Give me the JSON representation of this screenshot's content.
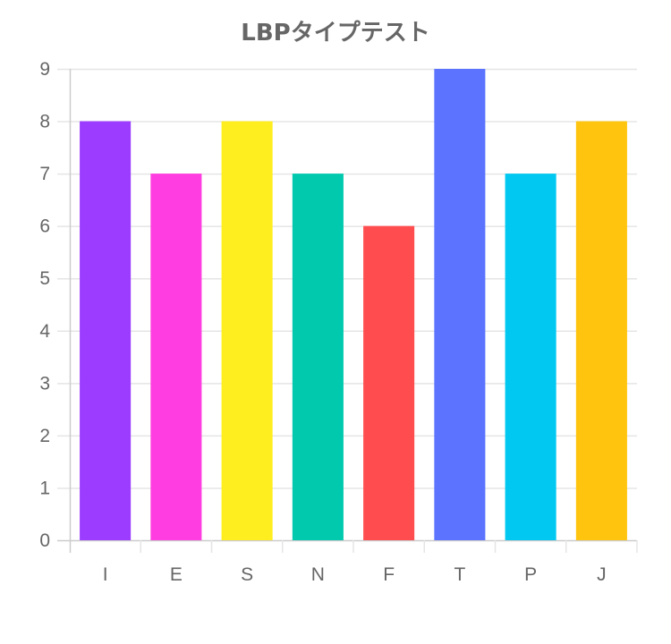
{
  "chart_data": {
    "type": "bar",
    "title": "LBPタイプテスト",
    "categories": [
      "I",
      "E",
      "S",
      "N",
      "F",
      "T",
      "P",
      "J"
    ],
    "values": [
      8,
      7,
      8,
      7,
      6,
      9,
      7,
      8
    ],
    "colors": [
      "#9b3cff",
      "#ff3de0",
      "#ffee1f",
      "#00c9ad",
      "#ff4d4f",
      "#5b73ff",
      "#00c8f0",
      "#ffc40d"
    ],
    "ylim": [
      0,
      9
    ],
    "yticks": [
      0,
      1,
      2,
      3,
      4,
      5,
      6,
      7,
      8,
      9
    ],
    "grid": true,
    "legend": "none",
    "grid_color": "#e5e5e5",
    "axis_color": "#cccccc",
    "text_color": "#666666"
  }
}
